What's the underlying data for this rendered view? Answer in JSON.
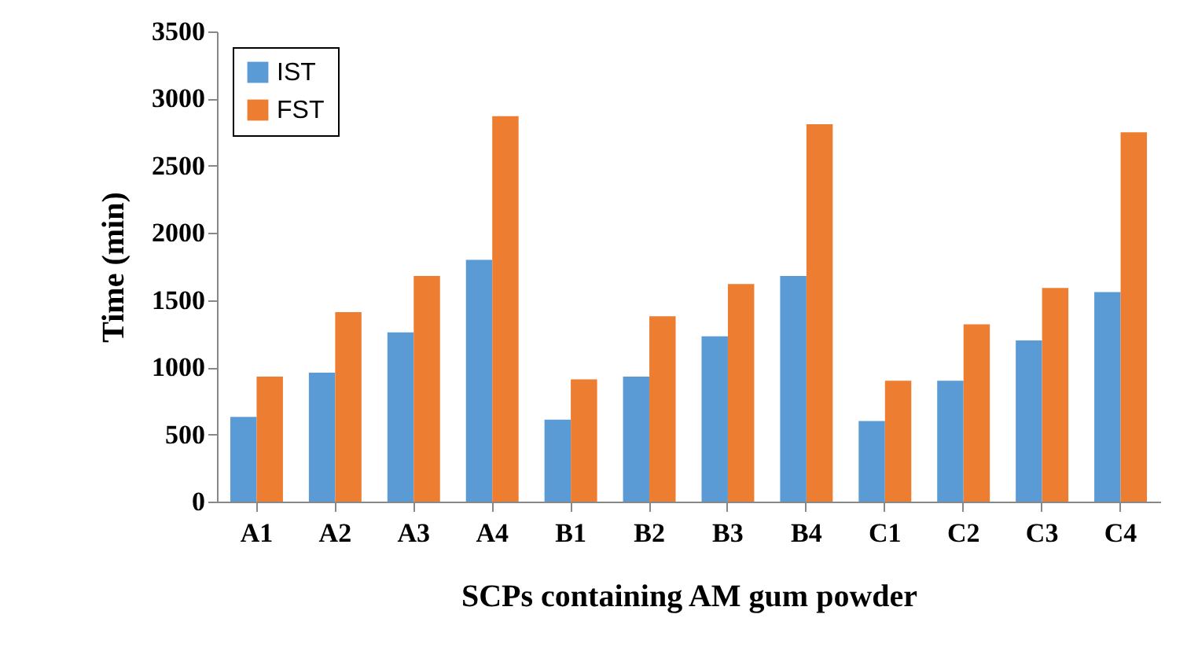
{
  "chart_data": {
    "type": "bar",
    "xlabel": "SCPs containing AM gum powder",
    "ylabel": "Time  (min)",
    "categories": [
      "A1",
      "A2",
      "A3",
      "A4",
      "B1",
      "B2",
      "B3",
      "B4",
      "C1",
      "C2",
      "C3",
      "C4"
    ],
    "series": [
      {
        "name": "IST",
        "color": "#5b9bd5",
        "values": [
          630,
          960,
          1260,
          1800,
          610,
          930,
          1230,
          1680,
          600,
          900,
          1200,
          1560
        ]
      },
      {
        "name": "FST",
        "color": "#ed7d31",
        "values": [
          930,
          1410,
          1680,
          2870,
          910,
          1380,
          1620,
          2810,
          900,
          1320,
          1590,
          2750
        ]
      }
    ],
    "ylim": [
      0,
      3500
    ],
    "yticks": [
      0,
      500,
      1000,
      1500,
      2000,
      2500,
      3000,
      3500
    ],
    "grid": false,
    "legend": "top left"
  }
}
